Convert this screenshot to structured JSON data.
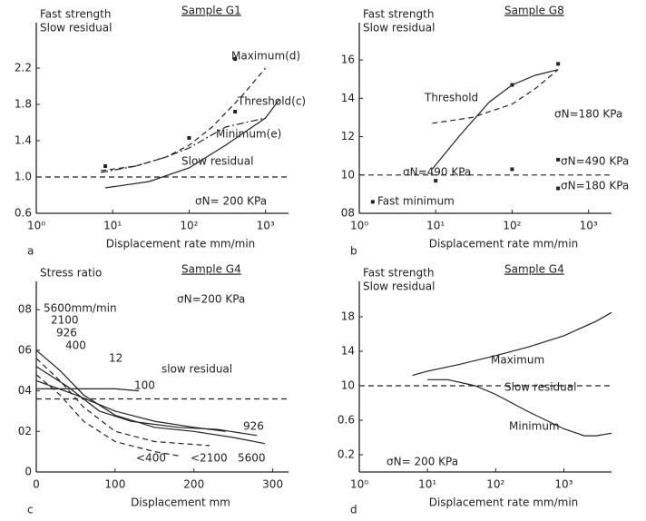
{
  "chart_data": [
    {
      "type": "line",
      "panel": "a",
      "title": "Sample G1",
      "ylabel": [
        "Fast strength",
        "Slow residual"
      ],
      "xlabel": "Displacement rate mm/min",
      "log_x": true,
      "color": "#222",
      "xlim": [
        1,
        2000
      ],
      "xticks": [
        {
          "value": 1,
          "label": "10⁰"
        },
        {
          "value": 10,
          "label": "10¹"
        },
        {
          "value": 100,
          "label": "10²"
        },
        {
          "value": 1000,
          "label": "10³"
        }
      ],
      "ylim": [
        0.6,
        2.5
      ],
      "yticks": [
        0.6,
        {
          "value": 1,
          "label": "1.0"
        },
        1.4,
        1.8,
        2.2
      ],
      "series": [
        {
          "name": "Maximum(d)",
          "dash": "dashed",
          "x": [
            7,
            20,
            50,
            100,
            200,
            500,
            1000
          ],
          "values": [
            1.07,
            1.12,
            1.22,
            1.35,
            1.55,
            1.9,
            2.2
          ]
        },
        {
          "name": "Threshold(c)",
          "dash": "dashdot",
          "x": [
            7,
            20,
            50,
            100,
            300,
            1000
          ],
          "values": [
            1.05,
            1.12,
            1.22,
            1.32,
            1.55,
            1.65
          ]
        },
        {
          "name": "Minimum(e)",
          "dash": "solid",
          "x": [
            8,
            30,
            100,
            300,
            1000,
            1500
          ],
          "values": [
            0.88,
            0.95,
            1.1,
            1.35,
            1.65,
            1.85
          ]
        },
        {
          "name": "Slow residual",
          "dash": "dashed",
          "x": [
            1,
            2000
          ],
          "values": [
            1,
            1
          ]
        }
      ],
      "points": {
        "x": [
          8,
          100,
          400,
          400
        ],
        "values": [
          1.12,
          1.43,
          2.3,
          1.72
        ]
      },
      "annotations": [
        "σN= 200 KPa"
      ]
    },
    {
      "type": "line",
      "panel": "b",
      "title": "Sample G8",
      "ylabel": [
        "Fast strength",
        "Slow residual"
      ],
      "xlabel": "Displacement rate mm/min",
      "log_x": true,
      "color": "#222",
      "xlim": [
        1,
        2000
      ],
      "xticks": [
        {
          "value": 1,
          "label": "10⁰"
        },
        {
          "value": 10,
          "label": "10¹"
        },
        {
          "value": 100,
          "label": "10²"
        },
        {
          "value": 1000,
          "label": "10³"
        }
      ],
      "ylim": [
        0.8,
        1.7
      ],
      "yticks": [
        {
          "value": 0.8,
          "label": "08"
        },
        {
          "value": 1,
          "label": "10"
        },
        {
          "value": 1.2,
          "label": "12"
        },
        {
          "value": 1.4,
          "label": "14"
        },
        {
          "value": 1.6,
          "label": "16"
        }
      ],
      "series": [
        {
          "name": "Threshold",
          "dash": "solid",
          "x": [
            9,
            20,
            50,
            100,
            200,
            400
          ],
          "values": [
            1.03,
            1.2,
            1.38,
            1.47,
            1.52,
            1.55
          ]
        },
        {
          "name": "σN=180 KPa",
          "dash": "dashed",
          "x": [
            9,
            30,
            100,
            200,
            400
          ],
          "values": [
            1.27,
            1.3,
            1.37,
            1.45,
            1.55
          ]
        },
        {
          "dash": "dashed",
          "x": [
            1,
            2000
          ],
          "values": [
            1,
            1
          ]
        }
      ],
      "points": {
        "x": [
          1.5,
          10,
          100,
          400,
          400,
          100,
          400
        ],
        "values": [
          0.86,
          0.97,
          1.03,
          1.08,
          0.93,
          1.47,
          1.58
        ]
      },
      "annotations": [
        "σN=490 KPa",
        "σN=490 KPa",
        "σN=180 KPa",
        "Fast  minimum"
      ]
    },
    {
      "type": "line",
      "panel": "c",
      "title": "Sample G4",
      "ylabel": [
        "Stress ratio"
      ],
      "xlabel": "Displacement mm",
      "log_x": false,
      "color": "#222",
      "xlim": [
        0,
        320
      ],
      "xticks": [
        0,
        100,
        200,
        300
      ],
      "ylim": [
        0,
        0.85
      ],
      "yticks": [
        0,
        {
          "value": 0.2,
          "label": "02"
        },
        {
          "value": 0.4,
          "label": "04"
        },
        {
          "value": 0.6,
          "label": "06"
        },
        {
          "value": 0.8,
          "label": "08"
        }
      ],
      "series": [
        {
          "name": "5600mm/min",
          "dash": "solid",
          "x": [
            0,
            30,
            60,
            100,
            150,
            200,
            250,
            290
          ],
          "values": [
            0.6,
            0.5,
            0.38,
            0.28,
            0.22,
            0.2,
            0.17,
            0.14
          ]
        },
        {
          "name": "2100",
          "dash": "dashed",
          "x": [
            0,
            30,
            60,
            100,
            150,
            220
          ],
          "values": [
            0.56,
            0.45,
            0.32,
            0.2,
            0.15,
            0.13
          ]
        },
        {
          "name": "926",
          "dash": "solid",
          "x": [
            0,
            40,
            80,
            120,
            180,
            230,
            280
          ],
          "values": [
            0.52,
            0.42,
            0.3,
            0.25,
            0.22,
            0.21,
            0.18
          ]
        },
        {
          "name": "400",
          "dash": "dashed",
          "x": [
            0,
            30,
            60,
            100,
            150,
            180
          ],
          "values": [
            0.48,
            0.38,
            0.25,
            0.15,
            0.1,
            0.08
          ]
        },
        {
          "name": "12",
          "dash": "solid",
          "x": [
            0,
            50,
            100,
            130
          ],
          "values": [
            0.41,
            0.41,
            0.41,
            0.4
          ]
        },
        {
          "name": "100",
          "dash": "solid",
          "x": [
            0,
            50,
            100,
            150,
            200,
            240
          ],
          "values": [
            0.45,
            0.38,
            0.3,
            0.25,
            0.22,
            0.2
          ]
        },
        {
          "name": "slow  residual",
          "dash": "dashed",
          "x": [
            0,
            320
          ],
          "values": [
            0.36,
            0.36
          ]
        }
      ],
      "annotations": [
        "σN=200 KPa",
        "926",
        "<400",
        "<2100",
        "5600"
      ]
    },
    {
      "type": "line",
      "panel": "d",
      "title": "Sample G4",
      "ylabel": [
        "Fast strength",
        "Slow residual"
      ],
      "xlabel": "Displacement rate mm/min",
      "log_x": true,
      "color": "#222",
      "xlim": [
        1,
        5000
      ],
      "xticks": [
        {
          "value": 1,
          "label": "10⁰"
        },
        {
          "value": 10,
          "label": "10¹"
        },
        {
          "value": 100,
          "label": "10²"
        },
        {
          "value": 1000,
          "label": "10³"
        }
      ],
      "ylim": [
        0,
        2
      ],
      "yticks": [
        0.2,
        0.6,
        {
          "value": 1,
          "label": "10"
        },
        {
          "value": 1.4,
          "label": "14"
        },
        {
          "value": 1.8,
          "label": "18"
        }
      ],
      "series": [
        {
          "name": "Maximum",
          "dash": "solid",
          "x": [
            6,
            10,
            30,
            100,
            300,
            1000,
            3000,
            5000
          ],
          "values": [
            1.12,
            1.17,
            1.25,
            1.35,
            1.45,
            1.58,
            1.75,
            1.85
          ]
        },
        {
          "name": "Slow  residual",
          "dash": "dashed",
          "x": [
            1,
            5000
          ],
          "values": [
            1,
            1
          ]
        },
        {
          "name": "Minimum",
          "dash": "solid",
          "x": [
            10,
            20,
            50,
            100,
            300,
            1000,
            2000,
            3000,
            5000
          ],
          "values": [
            1.07,
            1.07,
            1.0,
            0.9,
            0.7,
            0.5,
            0.42,
            0.42,
            0.45
          ]
        }
      ],
      "annotations": [
        "σN= 200 KPa"
      ]
    }
  ]
}
